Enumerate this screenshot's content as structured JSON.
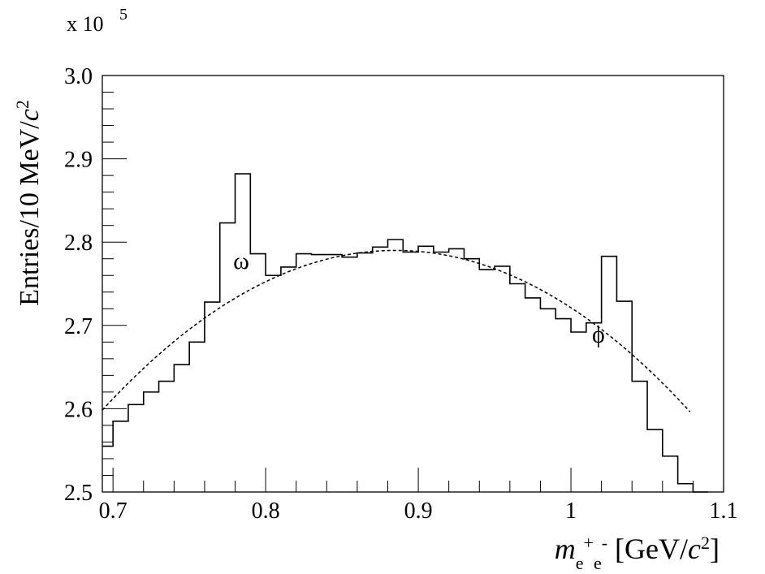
{
  "chart_data": {
    "type": "histogram",
    "scale_note": {
      "prefix": "x 10",
      "exponent": "5"
    },
    "ylabel": {
      "text": "Entries/10 MeV/",
      "italic": "c",
      "sup": "2"
    },
    "xlabel": {
      "m": "m",
      "sub1": "e",
      "sup1": "+",
      "sub2": "e",
      "sup2": "-",
      "bracket_open": " [GeV/",
      "c": "c",
      "c_sup": "2",
      "bracket_close": "]"
    },
    "xlim": [
      0.693,
      1.1
    ],
    "ylim": [
      2.5,
      3.0
    ],
    "x_ticks": [
      0.7,
      0.8,
      0.9,
      1.0,
      1.1
    ],
    "x_tick_labels": [
      "0.7",
      "0.8",
      "0.9",
      "1",
      "1.1"
    ],
    "y_ticks": [
      2.5,
      2.6,
      2.7,
      2.8,
      2.9,
      3.0
    ],
    "y_tick_labels": [
      "2.5",
      "2.6",
      "2.7",
      "2.8",
      "2.9",
      "3.0"
    ],
    "bin_width": 0.01,
    "bins": [
      {
        "x0": 0.69,
        "y": 2.555
      },
      {
        "x0": 0.7,
        "y": 2.585
      },
      {
        "x0": 0.71,
        "y": 2.605
      },
      {
        "x0": 0.72,
        "y": 2.62
      },
      {
        "x0": 0.73,
        "y": 2.633
      },
      {
        "x0": 0.74,
        "y": 2.653
      },
      {
        "x0": 0.75,
        "y": 2.68
      },
      {
        "x0": 0.76,
        "y": 2.728
      },
      {
        "x0": 0.77,
        "y": 2.823
      },
      {
        "x0": 0.78,
        "y": 2.882
      },
      {
        "x0": 0.79,
        "y": 2.786
      },
      {
        "x0": 0.8,
        "y": 2.76
      },
      {
        "x0": 0.81,
        "y": 2.77
      },
      {
        "x0": 0.82,
        "y": 2.786
      },
      {
        "x0": 0.83,
        "y": 2.785
      },
      {
        "x0": 0.84,
        "y": 2.785
      },
      {
        "x0": 0.85,
        "y": 2.782
      },
      {
        "x0": 0.86,
        "y": 2.787
      },
      {
        "x0": 0.87,
        "y": 2.794
      },
      {
        "x0": 0.88,
        "y": 2.803
      },
      {
        "x0": 0.89,
        "y": 2.788
      },
      {
        "x0": 0.9,
        "y": 2.795
      },
      {
        "x0": 0.91,
        "y": 2.788
      },
      {
        "x0": 0.92,
        "y": 2.792
      },
      {
        "x0": 0.93,
        "y": 2.78
      },
      {
        "x0": 0.94,
        "y": 2.767
      },
      {
        "x0": 0.95,
        "y": 2.771
      },
      {
        "x0": 0.96,
        "y": 2.75
      },
      {
        "x0": 0.97,
        "y": 2.733
      },
      {
        "x0": 0.98,
        "y": 2.72
      },
      {
        "x0": 0.99,
        "y": 2.708
      },
      {
        "x0": 1.0,
        "y": 2.692
      },
      {
        "x0": 1.01,
        "y": 2.703
      },
      {
        "x0": 1.02,
        "y": 2.783
      },
      {
        "x0": 1.03,
        "y": 2.729
      },
      {
        "x0": 1.04,
        "y": 2.633
      },
      {
        "x0": 1.05,
        "y": 2.575
      },
      {
        "x0": 1.06,
        "y": 2.543
      },
      {
        "x0": 1.07,
        "y": 2.51
      },
      {
        "x0": 1.08,
        "y": 2.495
      }
    ],
    "fit": {
      "style": "dashed",
      "peak_x": 0.885,
      "peak_y": 2.79,
      "curvature": 5.2,
      "x_range": [
        0.693,
        1.078
      ]
    },
    "annotations": [
      {
        "text": "ω",
        "x": 0.784,
        "y": 2.768
      },
      {
        "text": "ϕ",
        "x": 1.018,
        "y": 2.68
      }
    ],
    "grid": false,
    "colors": {
      "line": "#000000",
      "background": "#ffffff"
    }
  }
}
